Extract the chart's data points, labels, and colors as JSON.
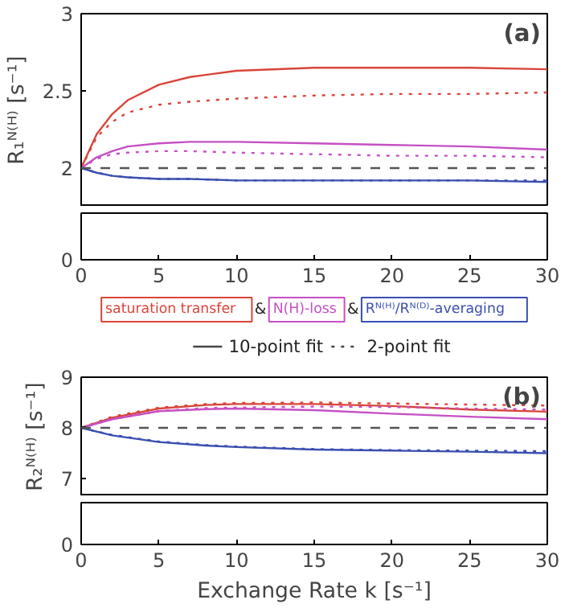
{
  "chart_data": [
    {
      "type": "line",
      "annotations": [
        "(a)",
        "0",
        "&",
        "&",
        "10-point fit",
        "2-point fit"
      ],
      "ylabel": "R₁ᴺ⁽ᴴ⁾ [s⁻¹]",
      "xlim": [
        0,
        30
      ],
      "xticks": [
        0,
        5,
        10,
        15,
        20,
        25,
        30
      ],
      "ylim": [
        1.75,
        3
      ],
      "yticks": [
        2,
        2.5,
        3
      ],
      "legend": "bottom",
      "ref_lines": [
        {
          "axis": "y",
          "value": 2,
          "color": "#555555",
          "line_style": "dashed"
        }
      ],
      "x": [
        0,
        1,
        2,
        3,
        5,
        7,
        10,
        15,
        20,
        25,
        30
      ],
      "series": [
        {
          "name": "saturation transfer",
          "color": "#d9453a",
          "line_style": "solid",
          "values": [
            2.0,
            2.22,
            2.35,
            2.44,
            2.54,
            2.59,
            2.63,
            2.65,
            2.65,
            2.65,
            2.64
          ]
        },
        {
          "color": "#d9453a",
          "line_style": "dotted",
          "values": [
            2.0,
            2.2,
            2.3,
            2.36,
            2.41,
            2.43,
            2.45,
            2.47,
            2.48,
            2.48,
            2.49
          ]
        },
        {
          "name": "N(H)-loss",
          "color": "#c64fc4",
          "line_style": "solid",
          "values": [
            2.0,
            2.07,
            2.11,
            2.14,
            2.16,
            2.17,
            2.17,
            2.16,
            2.15,
            2.14,
            2.12
          ]
        },
        {
          "color": "#c64fc4",
          "line_style": "dotted",
          "values": [
            2.0,
            2.06,
            2.09,
            2.1,
            2.11,
            2.11,
            2.1,
            2.09,
            2.08,
            2.08,
            2.07
          ]
        },
        {
          "name": "Rᴺ⁽ᴴ⁾/Rᴺ⁽ᴰ⁾-averaging",
          "color": "#3b4fb0",
          "line_style": "solid",
          "values": [
            2.0,
            1.97,
            1.95,
            1.94,
            1.93,
            1.93,
            1.92,
            1.92,
            1.92,
            1.92,
            1.91
          ]
        },
        {
          "color": "#3b4fb0",
          "line_style": "dotted",
          "values": [
            2.0,
            1.97,
            1.95,
            1.94,
            1.93,
            1.93,
            1.92,
            1.92,
            1.92,
            1.92,
            1.92
          ]
        }
      ]
    },
    {
      "type": "line",
      "annotations": [
        "(b)",
        "0"
      ],
      "ylabel": "R₂ᴺ⁽ᴴ⁾ [s⁻¹]",
      "xlabel": "Exchange Rate k [s⁻¹]",
      "xlim": [
        0,
        30
      ],
      "xticks": [
        0,
        5,
        10,
        15,
        20,
        25,
        30
      ],
      "ylim": [
        6.65,
        9
      ],
      "yticks": [
        7,
        8,
        9
      ],
      "ref_lines": [
        {
          "axis": "y",
          "value": 8,
          "color": "#555555",
          "line_style": "dashed"
        }
      ],
      "x": [
        0,
        2,
        5,
        8,
        10,
        15,
        20,
        25,
        30
      ],
      "series": [
        {
          "color": "#d9453a",
          "line_style": "solid",
          "values": [
            8.0,
            8.2,
            8.38,
            8.45,
            8.47,
            8.47,
            8.43,
            8.36,
            8.32
          ]
        },
        {
          "color": "#d9453a",
          "line_style": "dotted",
          "values": [
            8.0,
            8.22,
            8.4,
            8.47,
            8.49,
            8.5,
            8.48,
            8.46,
            8.44
          ]
        },
        {
          "color": "#c64fc4",
          "line_style": "solid",
          "values": [
            8.0,
            8.17,
            8.33,
            8.37,
            8.38,
            8.35,
            8.28,
            8.22,
            8.17
          ]
        },
        {
          "color": "#c64fc4",
          "line_style": "dotted",
          "values": [
            8.0,
            8.17,
            8.33,
            8.39,
            8.4,
            8.42,
            8.41,
            8.38,
            8.36
          ]
        },
        {
          "color": "#3b4fb0",
          "line_style": "solid",
          "values": [
            8.0,
            7.85,
            7.72,
            7.65,
            7.62,
            7.57,
            7.55,
            7.53,
            7.5
          ]
        },
        {
          "color": "#3b4fb0",
          "line_style": "dotted",
          "values": [
            8.0,
            7.86,
            7.73,
            7.66,
            7.63,
            7.58,
            7.56,
            7.55,
            7.54
          ]
        }
      ]
    }
  ]
}
